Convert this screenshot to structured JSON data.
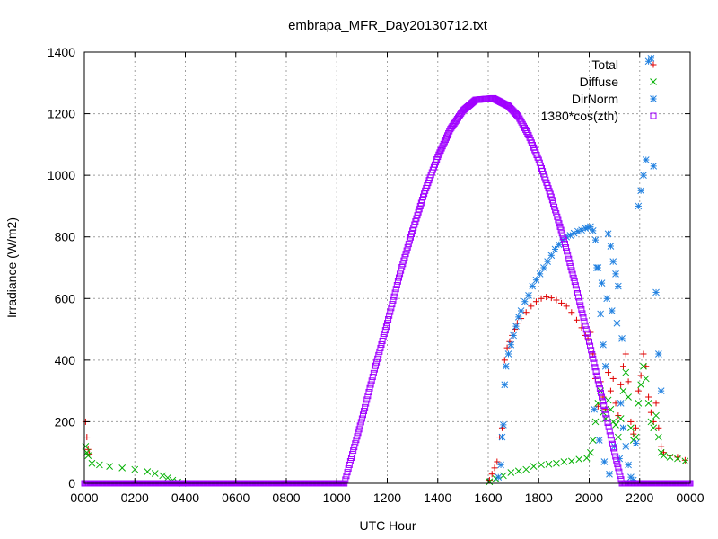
{
  "chart_data": {
    "type": "scatter",
    "title": "embrapa_MFR_Day20130712.txt",
    "xlabel": "UTC Hour",
    "ylabel": "Irradiance (W/m2)",
    "xlim": [
      0,
      24
    ],
    "ylim": [
      0,
      1400
    ],
    "grid": true,
    "legend_position": "top-right",
    "x_ticks": [
      0,
      2,
      4,
      6,
      8,
      10,
      12,
      14,
      16,
      18,
      20,
      22,
      24
    ],
    "x_tick_labels": [
      "0000",
      "0200",
      "0400",
      "0600",
      "0800",
      "1000",
      "1200",
      "1400",
      "1600",
      "1800",
      "2000",
      "2200",
      "0000"
    ],
    "y_ticks": [
      0,
      200,
      400,
      600,
      800,
      1000,
      1200,
      1400
    ],
    "y_tick_labels": [
      "0",
      "200",
      "400",
      "600",
      "800",
      "1000",
      "1200",
      "1400"
    ],
    "series": [
      {
        "name": "Total",
        "marker": "plus",
        "color": "#e00000",
        "points": [
          [
            0.05,
            200
          ],
          [
            0.1,
            150
          ],
          [
            0.15,
            110
          ],
          [
            0.2,
            95
          ],
          [
            16.05,
            10
          ],
          [
            16.15,
            30
          ],
          [
            16.25,
            50
          ],
          [
            16.35,
            70
          ],
          [
            16.45,
            150
          ],
          [
            16.55,
            180
          ],
          [
            16.65,
            400
          ],
          [
            16.75,
            440
          ],
          [
            16.85,
            460
          ],
          [
            16.95,
            480
          ],
          [
            17.05,
            500
          ],
          [
            17.15,
            520
          ],
          [
            17.3,
            535
          ],
          [
            17.5,
            555
          ],
          [
            17.7,
            575
          ],
          [
            17.9,
            590
          ],
          [
            18.1,
            600
          ],
          [
            18.3,
            605
          ],
          [
            18.5,
            602
          ],
          [
            18.7,
            595
          ],
          [
            18.9,
            585
          ],
          [
            19.1,
            575
          ],
          [
            19.3,
            555
          ],
          [
            19.5,
            530
          ],
          [
            19.7,
            505
          ],
          [
            19.85,
            480
          ],
          [
            19.95,
            470
          ],
          [
            20.05,
            490
          ],
          [
            20.15,
            420
          ],
          [
            20.25,
            340
          ],
          [
            20.35,
            250
          ],
          [
            20.45,
            330
          ],
          [
            20.55,
            280
          ],
          [
            20.65,
            240
          ],
          [
            20.75,
            360
          ],
          [
            20.85,
            300
          ],
          [
            20.95,
            340
          ],
          [
            21.05,
            260
          ],
          [
            21.15,
            220
          ],
          [
            21.25,
            320
          ],
          [
            21.35,
            380
          ],
          [
            21.45,
            420
          ],
          [
            21.55,
            330
          ],
          [
            21.65,
            200
          ],
          [
            21.75,
            160
          ],
          [
            21.85,
            180
          ],
          [
            21.95,
            300
          ],
          [
            22.05,
            350
          ],
          [
            22.15,
            420
          ],
          [
            22.25,
            380
          ],
          [
            22.35,
            280
          ],
          [
            22.45,
            230
          ],
          [
            22.55,
            200
          ],
          [
            22.65,
            260
          ],
          [
            22.75,
            180
          ],
          [
            22.85,
            120
          ],
          [
            22.95,
            100
          ],
          [
            23.2,
            90
          ],
          [
            23.5,
            85
          ],
          [
            23.8,
            75
          ]
        ]
      },
      {
        "name": "Diffuse",
        "marker": "cross",
        "color": "#00b000",
        "points": [
          [
            0.05,
            120
          ],
          [
            0.1,
            100
          ],
          [
            0.15,
            90
          ],
          [
            0.3,
            65
          ],
          [
            0.6,
            60
          ],
          [
            1.0,
            55
          ],
          [
            1.5,
            50
          ],
          [
            2.0,
            45
          ],
          [
            2.5,
            38
          ],
          [
            2.8,
            32
          ],
          [
            3.1,
            25
          ],
          [
            3.3,
            18
          ],
          [
            3.5,
            10
          ],
          [
            3.7,
            4
          ],
          [
            3.9,
            0
          ],
          [
            16.05,
            5
          ],
          [
            16.3,
            15
          ],
          [
            16.6,
            25
          ],
          [
            16.9,
            35
          ],
          [
            17.2,
            40
          ],
          [
            17.5,
            45
          ],
          [
            17.8,
            55
          ],
          [
            18.1,
            60
          ],
          [
            18.4,
            62
          ],
          [
            18.7,
            65
          ],
          [
            19.0,
            70
          ],
          [
            19.3,
            72
          ],
          [
            19.6,
            78
          ],
          [
            19.9,
            82
          ],
          [
            20.05,
            100
          ],
          [
            20.15,
            140
          ],
          [
            20.25,
            200
          ],
          [
            20.35,
            260
          ],
          [
            20.45,
            300
          ],
          [
            20.55,
            230
          ],
          [
            20.65,
            210
          ],
          [
            20.75,
            270
          ],
          [
            20.85,
            240
          ],
          [
            20.95,
            200
          ],
          [
            21.05,
            190
          ],
          [
            21.15,
            150
          ],
          [
            21.25,
            210
          ],
          [
            21.35,
            300
          ],
          [
            21.45,
            360
          ],
          [
            21.55,
            280
          ],
          [
            21.65,
            180
          ],
          [
            21.75,
            140
          ],
          [
            21.85,
            150
          ],
          [
            21.95,
            260
          ],
          [
            22.05,
            320
          ],
          [
            22.15,
            380
          ],
          [
            22.25,
            340
          ],
          [
            22.35,
            260
          ],
          [
            22.45,
            200
          ],
          [
            22.55,
            180
          ],
          [
            22.65,
            220
          ],
          [
            22.75,
            150
          ],
          [
            22.85,
            100
          ],
          [
            22.95,
            90
          ],
          [
            23.2,
            85
          ],
          [
            23.5,
            80
          ],
          [
            23.8,
            72
          ]
        ]
      },
      {
        "name": "DirNorm",
        "marker": "star",
        "color": "#2080e0",
        "points": [
          [
            16.4,
            20
          ],
          [
            16.5,
            60
          ],
          [
            16.55,
            150
          ],
          [
            16.6,
            190
          ],
          [
            16.65,
            320
          ],
          [
            16.7,
            380
          ],
          [
            16.8,
            420
          ],
          [
            16.9,
            450
          ],
          [
            17.0,
            480
          ],
          [
            17.1,
            510
          ],
          [
            17.2,
            540
          ],
          [
            17.3,
            560
          ],
          [
            17.45,
            590
          ],
          [
            17.6,
            610
          ],
          [
            17.75,
            640
          ],
          [
            17.9,
            660
          ],
          [
            18.05,
            680
          ],
          [
            18.2,
            700
          ],
          [
            18.35,
            720
          ],
          [
            18.5,
            740
          ],
          [
            18.65,
            760
          ],
          [
            18.8,
            775
          ],
          [
            18.95,
            790
          ],
          [
            19.1,
            800
          ],
          [
            19.25,
            805
          ],
          [
            19.4,
            812
          ],
          [
            19.55,
            818
          ],
          [
            19.7,
            822
          ],
          [
            19.85,
            828
          ],
          [
            19.95,
            830
          ],
          [
            20.05,
            833
          ],
          [
            20.15,
            820
          ],
          [
            20.25,
            790
          ],
          [
            20.35,
            700
          ],
          [
            20.45,
            550
          ],
          [
            20.55,
            450
          ],
          [
            20.65,
            380
          ],
          [
            20.75,
            810
          ],
          [
            20.85,
            770
          ],
          [
            20.95,
            720
          ],
          [
            21.05,
            680
          ],
          [
            21.15,
            640
          ],
          [
            21.25,
            260
          ],
          [
            21.35,
            180
          ],
          [
            21.45,
            120
          ],
          [
            21.55,
            60
          ],
          [
            21.65,
            20
          ],
          [
            21.75,
            10
          ],
          [
            21.85,
            130
          ],
          [
            21.95,
            900
          ],
          [
            22.05,
            950
          ],
          [
            22.15,
            1000
          ],
          [
            22.25,
            1050
          ],
          [
            22.35,
            1370
          ],
          [
            22.45,
            1380
          ],
          [
            22.55,
            1030
          ],
          [
            22.65,
            620
          ],
          [
            22.75,
            420
          ],
          [
            22.85,
            300
          ],
          [
            20.3,
            700
          ],
          [
            20.5,
            650
          ],
          [
            20.7,
            600
          ],
          [
            20.9,
            560
          ],
          [
            21.1,
            520
          ],
          [
            21.3,
            470
          ],
          [
            20.2,
            240
          ],
          [
            20.4,
            140
          ],
          [
            20.6,
            70
          ],
          [
            20.8,
            30
          ],
          [
            21.0,
            120
          ],
          [
            21.2,
            80
          ]
        ]
      },
      {
        "name": "1380*cos(zth)",
        "marker": "square",
        "color": "#a000ff",
        "points": [
          [
            0,
            0
          ],
          [
            1,
            0
          ],
          [
            2,
            0
          ],
          [
            3,
            0
          ],
          [
            4,
            0
          ],
          [
            5,
            0
          ],
          [
            6,
            0
          ],
          [
            7,
            0
          ],
          [
            8,
            0
          ],
          [
            9,
            0
          ],
          [
            10,
            0
          ],
          [
            10.3,
            0
          ],
          [
            10.5,
            60
          ],
          [
            11.0,
            210
          ],
          [
            11.5,
            370
          ],
          [
            12.0,
            520
          ],
          [
            12.5,
            680
          ],
          [
            13.0,
            820
          ],
          [
            13.5,
            950
          ],
          [
            14.0,
            1060
          ],
          [
            14.5,
            1150
          ],
          [
            15.0,
            1210
          ],
          [
            15.5,
            1245
          ],
          [
            16.2,
            1250
          ],
          [
            16.8,
            1225
          ],
          [
            17.2,
            1190
          ],
          [
            17.6,
            1130
          ],
          [
            18.0,
            1050
          ],
          [
            18.5,
            930
          ],
          [
            19.0,
            790
          ],
          [
            19.5,
            630
          ],
          [
            20.0,
            460
          ],
          [
            20.5,
            280
          ],
          [
            21.0,
            100
          ],
          [
            21.3,
            0
          ],
          [
            22,
            0
          ],
          [
            23,
            0
          ],
          [
            24,
            0
          ]
        ]
      }
    ]
  }
}
